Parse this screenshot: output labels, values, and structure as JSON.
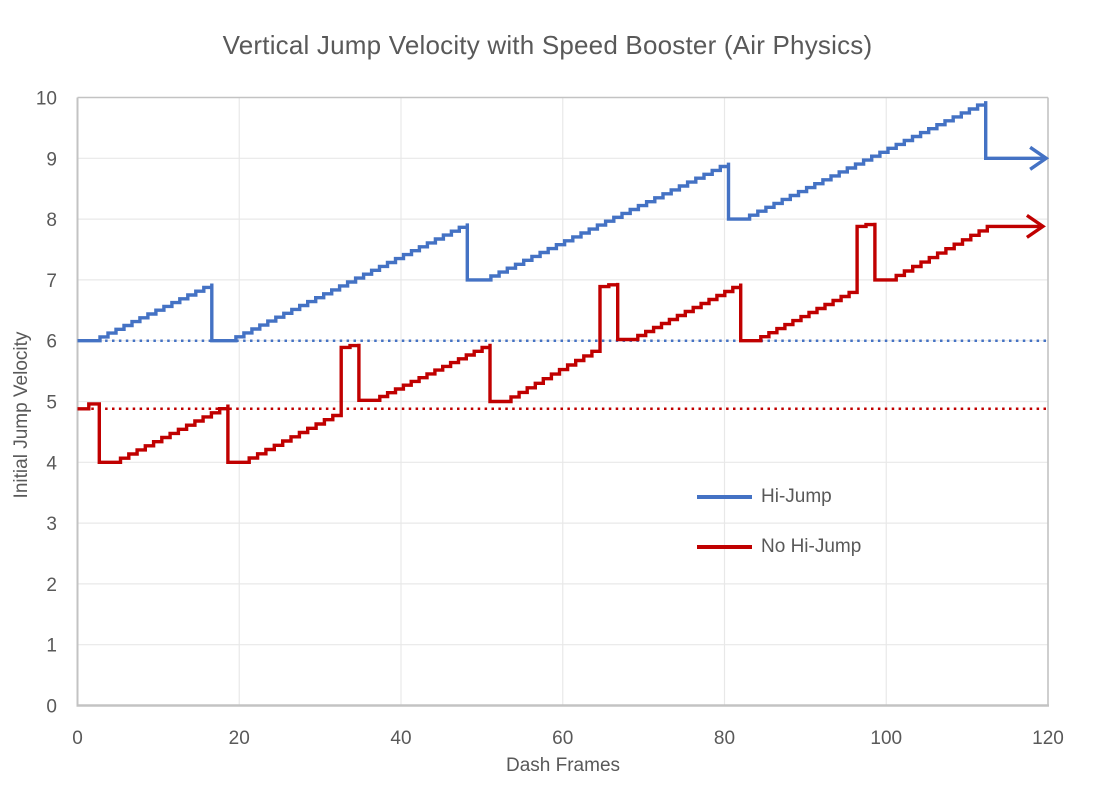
{
  "chart_data": {
    "type": "line",
    "title": "Vertical Jump Velocity with Speed Booster (Air Physics)",
    "xlabel": "Dash Frames",
    "ylabel": "Initial Jump Velocity",
    "xlim": [
      0,
      120
    ],
    "ylim": [
      0,
      10
    ],
    "x_ticks": [
      0,
      20,
      40,
      60,
      80,
      100,
      120
    ],
    "y_ticks": [
      0,
      1,
      2,
      3,
      4,
      5,
      6,
      7,
      8,
      9,
      10
    ],
    "grid": true,
    "legend_position": "center-right",
    "reference_lines": [
      {
        "name": "hi-jump-base",
        "y": 6.0,
        "style": "dotted",
        "color": "#4472C4"
      },
      {
        "name": "no-hi-jump-base",
        "y": 4.88,
        "style": "dotted",
        "color": "#C00000"
      }
    ],
    "series": [
      {
        "name": "Hi-Jump",
        "color": "#4472C4",
        "style": "staircase",
        "end_arrow": true,
        "segments": [
          {
            "type": "flat",
            "x0": 0,
            "x1": 1.8,
            "y": 6.0
          },
          {
            "type": "ramp",
            "x0": 1.8,
            "x1": 16.6,
            "y0": 6.0,
            "y1": 6.94
          },
          {
            "type": "flat",
            "x0": 16.6,
            "x1": 18.6,
            "y": 6.0
          },
          {
            "type": "ramp",
            "x0": 18.6,
            "x1": 48.2,
            "y0": 6.0,
            "y1": 7.93
          },
          {
            "type": "flat",
            "x0": 48.2,
            "x1": 50.1,
            "y": 7.0
          },
          {
            "type": "ramp",
            "x0": 50.1,
            "x1": 80.5,
            "y0": 7.0,
            "y1": 8.93
          },
          {
            "type": "flat",
            "x0": 80.5,
            "x1": 82.1,
            "y": 8.0
          },
          {
            "type": "ramp",
            "x0": 82.1,
            "x1": 112.3,
            "y0": 8.0,
            "y1": 9.94
          },
          {
            "type": "flat",
            "x0": 112.3,
            "x1": 119.4,
            "y": 9.0
          }
        ]
      },
      {
        "name": "No Hi-Jump",
        "color": "#C00000",
        "style": "staircase",
        "end_arrow": true,
        "segments": [
          {
            "type": "flat",
            "x0": 0,
            "x1": 1.4,
            "y": 4.88
          },
          {
            "type": "flat",
            "x0": 1.4,
            "x1": 2.7,
            "y": 4.96
          },
          {
            "type": "flat",
            "x0": 2.7,
            "x1": 4.3,
            "y": 4.0
          },
          {
            "type": "ramp",
            "x0": 4.3,
            "x1": 18.6,
            "y0": 4.0,
            "y1": 4.95
          },
          {
            "type": "flat",
            "x0": 18.6,
            "x1": 20.2,
            "y": 4.0
          },
          {
            "type": "ramp",
            "x0": 20.2,
            "x1": 32.6,
            "y0": 4.0,
            "y1": 4.84
          },
          {
            "type": "ramp",
            "x0": 32.6,
            "x1": 34.8,
            "y0": 5.89,
            "y1": 5.95
          },
          {
            "type": "flat",
            "x0": 34.8,
            "x1": 36.4,
            "y": 5.02
          },
          {
            "type": "ramp",
            "x0": 36.4,
            "x1": 51.0,
            "y0": 5.02,
            "y1": 5.95
          },
          {
            "type": "flat",
            "x0": 51.0,
            "x1": 52.6,
            "y": 5.0
          },
          {
            "type": "ramp",
            "x0": 52.6,
            "x1": 64.6,
            "y0": 5.0,
            "y1": 5.9
          },
          {
            "type": "ramp",
            "x0": 64.6,
            "x1": 66.8,
            "y0": 6.89,
            "y1": 6.95
          },
          {
            "type": "flat",
            "x0": 66.8,
            "x1": 68.3,
            "y": 6.02
          },
          {
            "type": "ramp",
            "x0": 68.3,
            "x1": 82.0,
            "y0": 6.02,
            "y1": 6.94
          },
          {
            "type": "flat",
            "x0": 82.0,
            "x1": 83.5,
            "y": 6.0
          },
          {
            "type": "ramp",
            "x0": 83.5,
            "x1": 96.4,
            "y0": 6.0,
            "y1": 6.86
          },
          {
            "type": "ramp",
            "x0": 96.4,
            "x1": 98.6,
            "y0": 7.88,
            "y1": 7.94
          },
          {
            "type": "flat",
            "x0": 98.6,
            "x1": 100.2,
            "y": 7.0
          },
          {
            "type": "ramp",
            "x0": 100.2,
            "x1": 112.5,
            "y0": 7.0,
            "y1": 7.88
          },
          {
            "type": "flat",
            "x0": 112.5,
            "x1": 119.0,
            "y": 7.88
          }
        ]
      }
    ]
  },
  "legend": {
    "entries": [
      {
        "label": "Hi-Jump",
        "color": "#4472C4"
      },
      {
        "label": "No Hi-Jump",
        "color": "#C00000"
      }
    ]
  },
  "colors": {
    "text": "#595959",
    "grid": "#E8E8E8",
    "axis": "#C3C3C3",
    "background": "#FFFFFF"
  }
}
